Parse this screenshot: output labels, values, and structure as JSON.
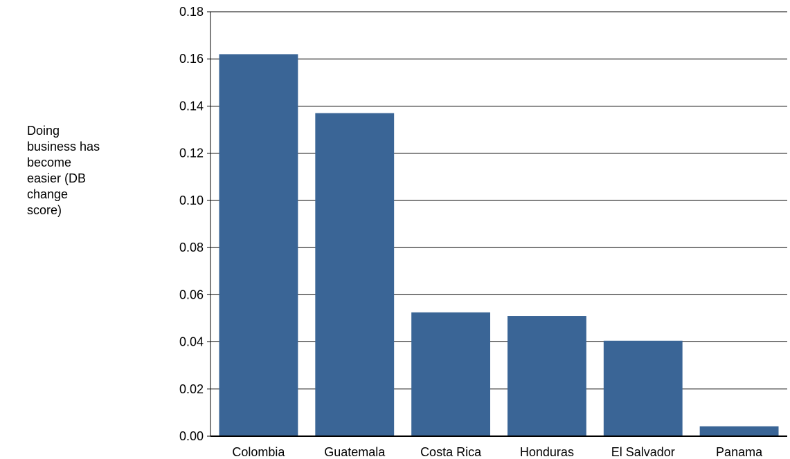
{
  "chart_data": {
    "type": "bar",
    "title": "",
    "xlabel": "",
    "ylabel": "Doing business has become easier (DB change score)",
    "ylabel_lines": [
      "Doing",
      "business has",
      "become",
      "easier (DB",
      "change",
      "score)"
    ],
    "categories": [
      "Colombia",
      "Guatemala",
      "Costa Rica",
      "Honduras",
      "El Salvador",
      "Panama"
    ],
    "values": [
      0.162,
      0.137,
      0.0525,
      0.051,
      0.0405,
      0.0042
    ],
    "ylim": [
      0,
      0.18
    ],
    "yticks": [
      0,
      0.02,
      0.04,
      0.06,
      0.08,
      0.1,
      0.12,
      0.14,
      0.16,
      0.18
    ],
    "ytick_labels": [
      "0.00",
      "0.02",
      "0.04",
      "0.06",
      "0.08",
      "0.10",
      "0.12",
      "0.14",
      "0.16",
      "0.18"
    ],
    "grid": true,
    "legend": "none",
    "bar_color": "#3a6596"
  }
}
